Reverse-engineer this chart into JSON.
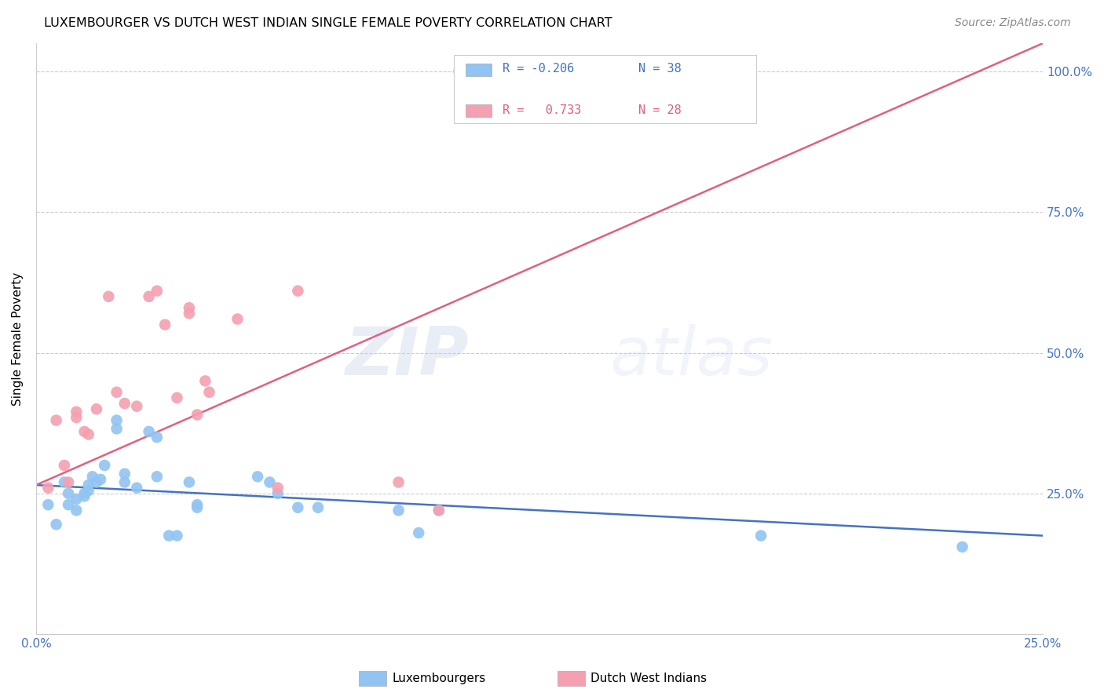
{
  "title": "LUXEMBOURGER VS DUTCH WEST INDIAN SINGLE FEMALE POVERTY CORRELATION CHART",
  "source": "Source: ZipAtlas.com",
  "ylabel": "Single Female Poverty",
  "xlim": [
    0.0,
    0.25
  ],
  "ylim": [
    0.0,
    1.05
  ],
  "ytick_vals": [
    0.0,
    0.25,
    0.5,
    0.75,
    1.0
  ],
  "xtick_vals": [
    0.0,
    0.05,
    0.1,
    0.15,
    0.2,
    0.25
  ],
  "lux_color": "#91C4F2",
  "dwi_color": "#F4A0B0",
  "lux_line_color": "#4472C4",
  "dwi_line_color": "#E06080",
  "lux_R": "-0.206",
  "lux_N": "38",
  "dwi_R": "0.733",
  "dwi_N": "28",
  "lux_scatter_x": [
    0.003,
    0.005,
    0.007,
    0.008,
    0.008,
    0.01,
    0.01,
    0.012,
    0.012,
    0.013,
    0.013,
    0.014,
    0.015,
    0.016,
    0.017,
    0.02,
    0.02,
    0.022,
    0.022,
    0.025,
    0.028,
    0.03,
    0.03,
    0.033,
    0.035,
    0.038,
    0.04,
    0.04,
    0.055,
    0.058,
    0.06,
    0.065,
    0.07,
    0.09,
    0.095,
    0.1,
    0.18,
    0.23
  ],
  "lux_scatter_y": [
    0.23,
    0.195,
    0.27,
    0.25,
    0.23,
    0.24,
    0.22,
    0.25,
    0.245,
    0.265,
    0.255,
    0.28,
    0.27,
    0.275,
    0.3,
    0.38,
    0.365,
    0.285,
    0.27,
    0.26,
    0.36,
    0.35,
    0.28,
    0.175,
    0.175,
    0.27,
    0.23,
    0.225,
    0.28,
    0.27,
    0.25,
    0.225,
    0.225,
    0.22,
    0.18,
    0.22,
    0.175,
    0.155
  ],
  "dwi_scatter_x": [
    0.003,
    0.005,
    0.007,
    0.008,
    0.01,
    0.01,
    0.012,
    0.013,
    0.015,
    0.018,
    0.02,
    0.022,
    0.025,
    0.028,
    0.03,
    0.032,
    0.035,
    0.038,
    0.038,
    0.04,
    0.042,
    0.043,
    0.05,
    0.06,
    0.065,
    0.09,
    0.1,
    0.105
  ],
  "dwi_scatter_y": [
    0.26,
    0.38,
    0.3,
    0.27,
    0.395,
    0.385,
    0.36,
    0.355,
    0.4,
    0.6,
    0.43,
    0.41,
    0.405,
    0.6,
    0.61,
    0.55,
    0.42,
    0.58,
    0.57,
    0.39,
    0.45,
    0.43,
    0.56,
    0.26,
    0.61,
    0.27,
    0.22,
    1.0
  ],
  "lux_trend_x": [
    0.0,
    0.25
  ],
  "lux_trend_y": [
    0.265,
    0.175
  ],
  "dwi_trend_x": [
    0.0,
    0.25
  ],
  "dwi_trend_y": [
    0.265,
    1.05
  ]
}
